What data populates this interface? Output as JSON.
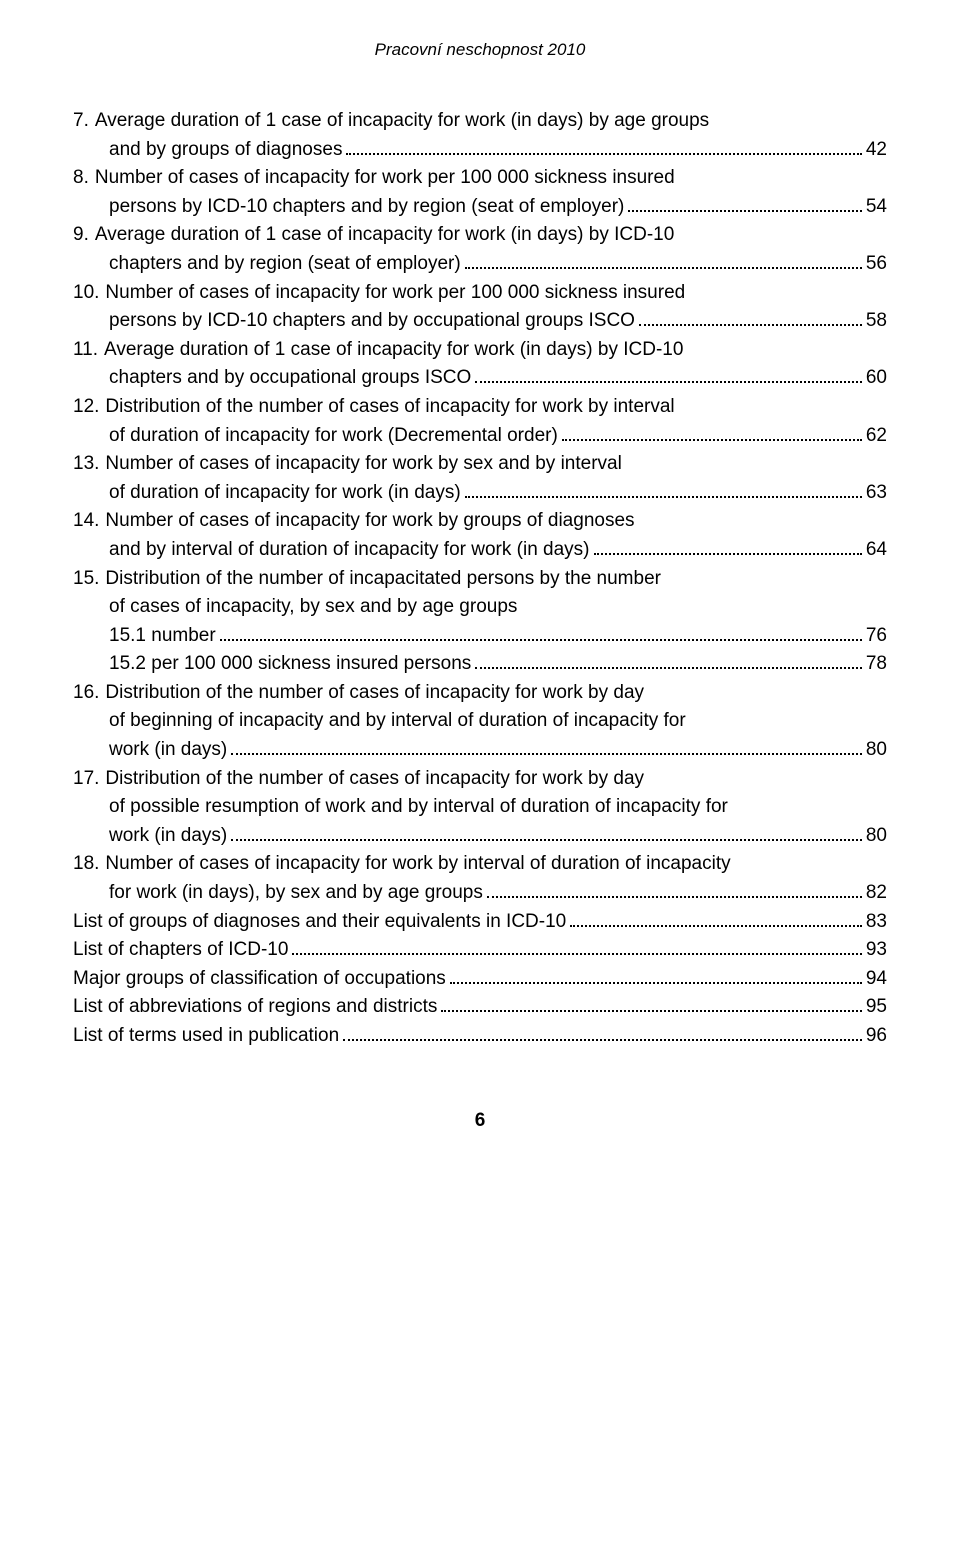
{
  "header": {
    "title": "Pracovní neschopnost 2010"
  },
  "toc": {
    "entries": [
      {
        "num": "7.",
        "lines": [
          "Average duration of 1 case of incapacity for work (in days) by age groups",
          "and by groups of diagnoses"
        ],
        "page": "42"
      },
      {
        "num": "8.",
        "lines": [
          "Number of cases of incapacity for work per 100 000 sickness insured",
          "persons by ICD-10 chapters and by region (seat of employer)"
        ],
        "page": "54"
      },
      {
        "num": "9.",
        "lines": [
          "Average duration of 1 case of incapacity for work (in days) by ICD-10",
          "chapters and by region (seat of employer)"
        ],
        "page": "56"
      },
      {
        "num": "10.",
        "lines": [
          "Number of cases of incapacity for work per 100 000 sickness insured",
          "persons by ICD-10 chapters and by occupational groups ISCO"
        ],
        "page": "58"
      },
      {
        "num": "11.",
        "lines": [
          "Average duration of 1 case of incapacity for work (in days) by ICD-10",
          "chapters and by occupational groups ISCO"
        ],
        "page": "60"
      },
      {
        "num": "12.",
        "lines": [
          "Distribution of the number of cases of incapacity for work by interval",
          "of duration of incapacity for work (Decremental order)"
        ],
        "page": "62"
      },
      {
        "num": "13.",
        "lines": [
          "Number of cases of incapacity for work by sex and by interval",
          "of duration of incapacity for work (in days)"
        ],
        "page": "63"
      },
      {
        "num": "14.",
        "lines": [
          "Number of cases of incapacity for work by groups of diagnoses",
          "and by interval of duration of incapacity for work (in days)"
        ],
        "page": "64"
      },
      {
        "num": "15.",
        "lines": [
          "Distribution of the number of incapacitated persons by the number",
          "of cases of incapacity, by sex and by age groups"
        ],
        "page": null,
        "subs": [
          {
            "label": "15.1 number",
            "page": "76"
          },
          {
            "label": "15.2 per 100 000 sickness insured persons",
            "page": "78"
          }
        ]
      },
      {
        "num": "16.",
        "lines": [
          "Distribution of the number of cases of incapacity for work by day",
          "of beginning of incapacity and by interval of duration of incapacity for",
          "work (in days)"
        ],
        "page": "80"
      },
      {
        "num": "17.",
        "lines": [
          "Distribution of the number of cases of incapacity for work by day",
          "of possible resumption of work and by interval of duration of incapacity for",
          "work (in days)"
        ],
        "page": "80"
      },
      {
        "num": "18.",
        "lines": [
          "Number of cases of incapacity for work by interval of duration of incapacity",
          "for work (in days), by sex and by age groups"
        ],
        "page": "82"
      }
    ],
    "appendix": [
      {
        "label": "List of groups of diagnoses and their equivalents in ICD-10",
        "page": "83"
      },
      {
        "label": "List of chapters of ICD-10",
        "page": "93"
      },
      {
        "label": "Major groups of classification of occupations",
        "page": "94"
      },
      {
        "label": "List of abbreviations of regions and districts",
        "page": "95"
      },
      {
        "label": "List of terms used in publication",
        "page": "96"
      }
    ]
  },
  "footer": {
    "pageNumber": "6"
  }
}
